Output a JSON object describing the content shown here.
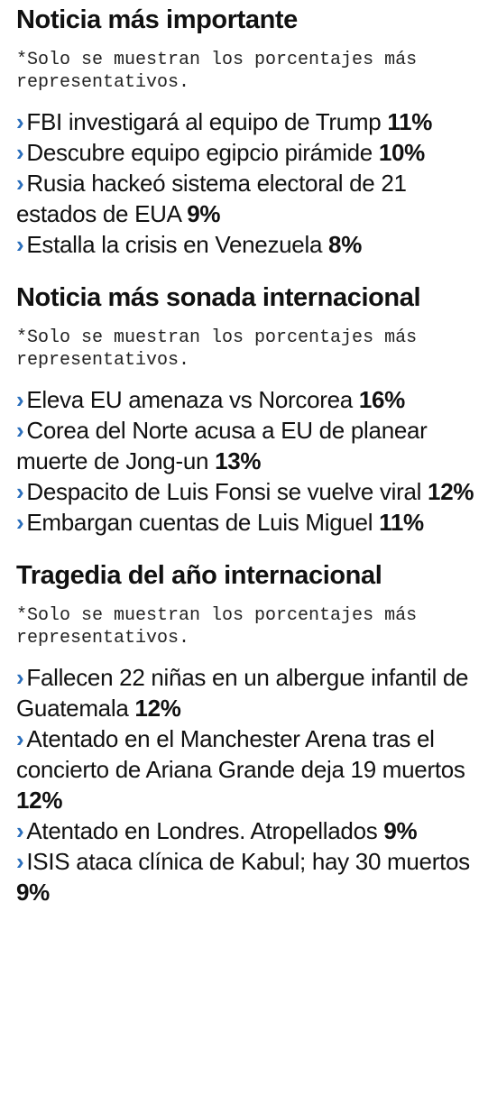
{
  "sections": [
    {
      "title": "Noticia más importante",
      "note": "*Solo se muestran los porcentajes más representativos.",
      "items": [
        {
          "text": "FBI investigará al equipo de Trump",
          "pct": "11%"
        },
        {
          "text": "Descubre equipo egipcio pirámide",
          "pct": "10%"
        },
        {
          "text": "Rusia hackeó sistema electoral de 21 estados de EUA",
          "pct": "9%"
        },
        {
          "text": "Estalla la crisis en Venezuela",
          "pct": "8%"
        }
      ]
    },
    {
      "title": "Noticia más sonada internacional",
      "note": "*Solo se muestran los porcentajes más representativos.",
      "items": [
        {
          "text": "Eleva EU amenaza vs Norcorea",
          "pct": "16%"
        },
        {
          "text": "Corea del Norte acusa a EU de planear muerte de Jong-un",
          "pct": "13%"
        },
        {
          "text": "Despacito de Luis Fonsi se vuelve viral",
          "pct": "12%"
        },
        {
          "text": "Embargan cuentas de Luis Miguel",
          "pct": "11%"
        }
      ]
    },
    {
      "title": "Tragedia del año internacional",
      "note": "*Solo se muestran los porcentajes más representativos.",
      "items": [
        {
          "text": "Fallecen 22 niñas en un albergue infantil de Guatemala",
          "pct": "12%"
        },
        {
          "text": "Atentado en el Manchester Arena tras el concierto de Ariana Grande deja 19 muertos",
          "pct": "12%"
        },
        {
          "text": "Atentado en Londres. Atropellados",
          "pct": "9%"
        },
        {
          "text": "ISIS ataca clínica de Kabul; hay 30 muertos",
          "pct": "9%"
        }
      ]
    }
  ]
}
